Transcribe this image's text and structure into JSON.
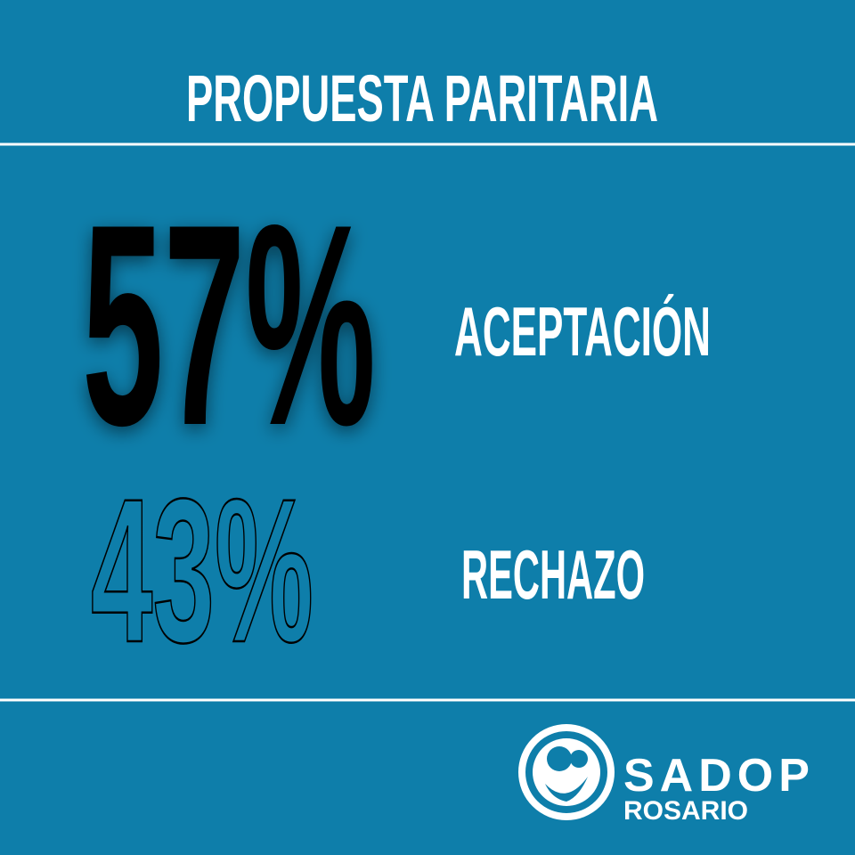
{
  "header": {
    "title": "PROPUESTA PARITARIA"
  },
  "results": [
    {
      "percent": "57%",
      "label": "ACEPTACIÓN"
    },
    {
      "percent": "43%",
      "label": "RECHAZO"
    }
  ],
  "logo": {
    "name": "SADOP",
    "subtitle": "ROSARIO"
  }
}
